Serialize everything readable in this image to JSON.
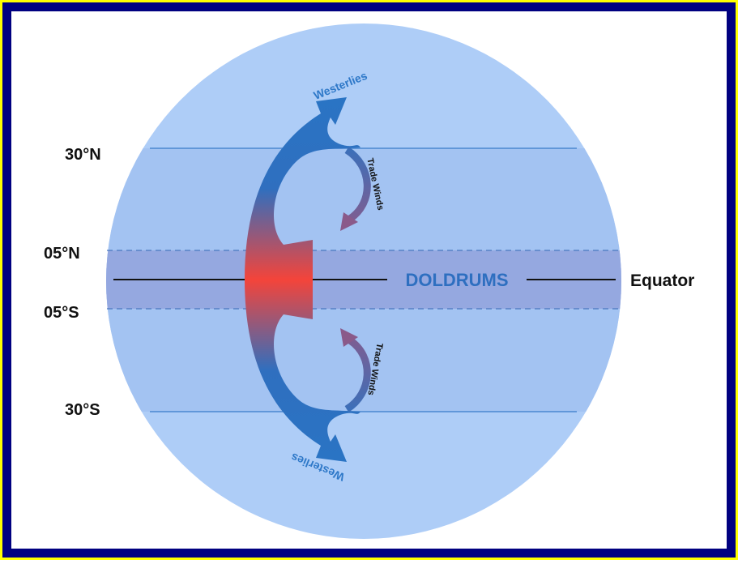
{
  "latitude_labels": [
    "30°N",
    "05°N",
    "05°S",
    "30°S"
  ],
  "band_label": "DOLDRUMS",
  "equator_label": "Equator",
  "winds": [
    {
      "label": "Westerlies"
    },
    {
      "label": "Trade Winds"
    },
    {
      "label": "Trade Winds"
    },
    {
      "label": "Westerlies"
    }
  ]
}
